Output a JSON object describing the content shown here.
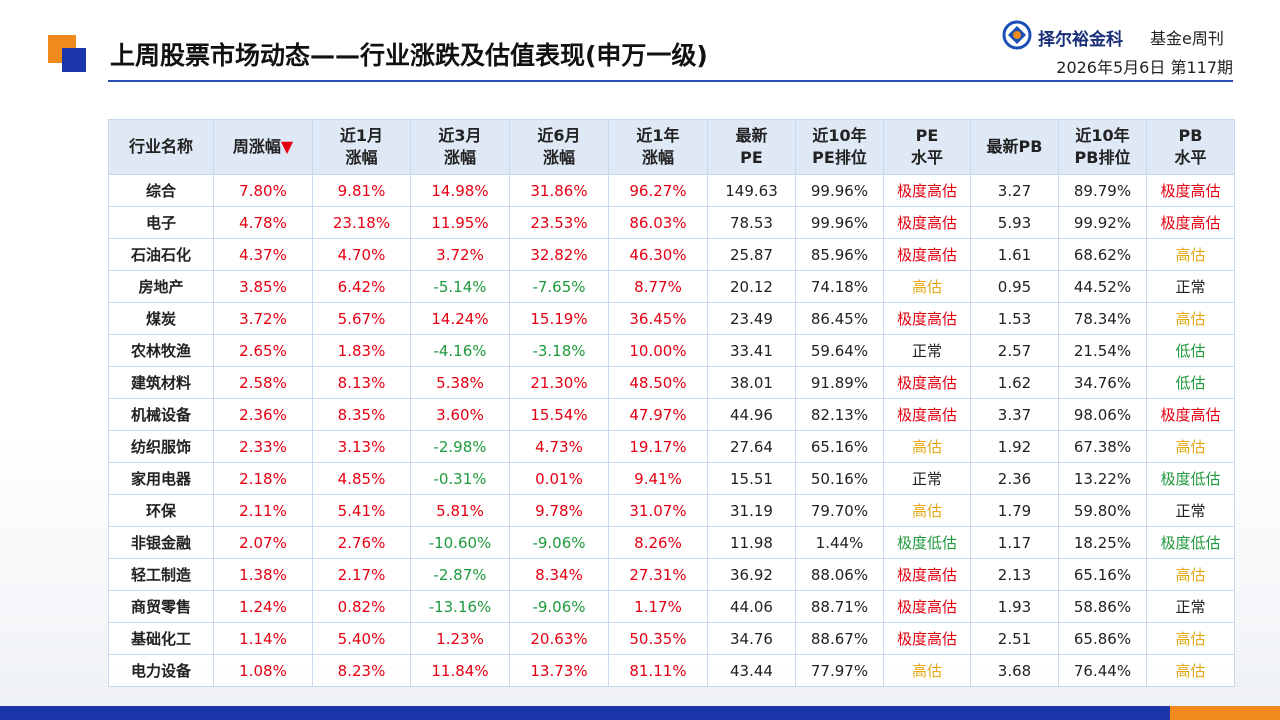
{
  "header": {
    "title": "上周股票市场动态——行业涨跌及估值表现(申万一级)",
    "brand": "择尔裕金科",
    "publication": "基金e周刊",
    "date": "2026年5月6日",
    "issue": "第117期"
  },
  "table": {
    "up_color": "#e60012",
    "down_color": "#1f9a3c",
    "text_color": "#222222",
    "columns": [
      {
        "text": "行业名称"
      },
      {
        "text": "周涨幅",
        "marker": "▼",
        "marker_color": "#e60012"
      },
      {
        "text": "近1月\n涨幅"
      },
      {
        "text": "近3月\n涨幅"
      },
      {
        "text": "近6月\n涨幅"
      },
      {
        "text": "近1年\n涨幅"
      },
      {
        "text": "最新\nPE"
      },
      {
        "text": "近10年\nPE排位"
      },
      {
        "text": "PE\n水平"
      },
      {
        "text": "最新PB"
      },
      {
        "text": "近10年\nPB排位"
      },
      {
        "text": "PB\n水平"
      }
    ],
    "rows": [
      [
        "综合",
        "7.80%",
        "9.81%",
        "14.98%",
        "31.86%",
        "96.27%",
        "149.63",
        "99.96%",
        {
          "text": "极度高估",
          "color": "#e60012"
        },
        "3.27",
        "89.79%",
        {
          "text": "极度高估",
          "color": "#e60012"
        }
      ],
      [
        "电子",
        "4.78%",
        "23.18%",
        "11.95%",
        "23.53%",
        "86.03%",
        "78.53",
        "99.96%",
        {
          "text": "极度高估",
          "color": "#e60012"
        },
        "5.93",
        "99.92%",
        {
          "text": "极度高估",
          "color": "#e60012"
        }
      ],
      [
        "石油石化",
        "4.37%",
        "4.70%",
        "3.72%",
        "32.82%",
        "46.30%",
        "25.87",
        "85.96%",
        {
          "text": "极度高估",
          "color": "#e60012"
        },
        "1.61",
        "68.62%",
        {
          "text": "高估",
          "color": "#e6a817"
        }
      ],
      [
        "房地产",
        "3.85%",
        "6.42%",
        "-5.14%",
        "-7.65%",
        "8.77%",
        "20.12",
        "74.18%",
        {
          "text": "高估",
          "color": "#e6a817"
        },
        "0.95",
        "44.52%",
        {
          "text": "正常",
          "color": "#222222"
        }
      ],
      [
        "煤炭",
        "3.72%",
        "5.67%",
        "14.24%",
        "15.19%",
        "36.45%",
        "23.49",
        "86.45%",
        {
          "text": "极度高估",
          "color": "#e60012"
        },
        "1.53",
        "78.34%",
        {
          "text": "高估",
          "color": "#e6a817"
        }
      ],
      [
        "农林牧渔",
        "2.65%",
        "1.83%",
        "-4.16%",
        "-3.18%",
        "10.00%",
        "33.41",
        "59.64%",
        {
          "text": "正常",
          "color": "#222222"
        },
        "2.57",
        "21.54%",
        {
          "text": "低估",
          "color": "#1f9a3c"
        }
      ],
      [
        "建筑材料",
        "2.58%",
        "8.13%",
        "5.38%",
        "21.30%",
        "48.50%",
        "38.01",
        "91.89%",
        {
          "text": "极度高估",
          "color": "#e60012"
        },
        "1.62",
        "34.76%",
        {
          "text": "低估",
          "color": "#1f9a3c"
        }
      ],
      [
        "机械设备",
        "2.36%",
        "8.35%",
        "3.60%",
        "15.54%",
        "47.97%",
        "44.96",
        "82.13%",
        {
          "text": "极度高估",
          "color": "#e60012"
        },
        "3.37",
        "98.06%",
        {
          "text": "极度高估",
          "color": "#e60012"
        }
      ],
      [
        "纺织服饰",
        "2.33%",
        "3.13%",
        "-2.98%",
        "4.73%",
        "19.17%",
        "27.64",
        "65.16%",
        {
          "text": "高估",
          "color": "#e6a817"
        },
        "1.92",
        "67.38%",
        {
          "text": "高估",
          "color": "#e6a817"
        }
      ],
      [
        "家用电器",
        "2.18%",
        "4.85%",
        "-0.31%",
        "0.01%",
        "9.41%",
        "15.51",
        "50.16%",
        {
          "text": "正常",
          "color": "#222222"
        },
        "2.36",
        "13.22%",
        {
          "text": "极度低估",
          "color": "#1f9a3c"
        }
      ],
      [
        "环保",
        "2.11%",
        "5.41%",
        "5.81%",
        "9.78%",
        "31.07%",
        "31.19",
        "79.70%",
        {
          "text": "高估",
          "color": "#e6a817"
        },
        "1.79",
        "59.80%",
        {
          "text": "正常",
          "color": "#222222"
        }
      ],
      [
        "非银金融",
        "2.07%",
        "2.76%",
        "-10.60%",
        "-9.06%",
        "8.26%",
        "11.98",
        "1.44%",
        {
          "text": "极度低估",
          "color": "#1f9a3c"
        },
        "1.17",
        "18.25%",
        {
          "text": "极度低估",
          "color": "#1f9a3c"
        }
      ],
      [
        "轻工制造",
        "1.38%",
        "2.17%",
        "-2.87%",
        "8.34%",
        "27.31%",
        "36.92",
        "88.06%",
        {
          "text": "极度高估",
          "color": "#e60012"
        },
        "2.13",
        "65.16%",
        {
          "text": "高估",
          "color": "#e6a817"
        }
      ],
      [
        "商贸零售",
        "1.24%",
        "0.82%",
        "-13.16%",
        "-9.06%",
        "1.17%",
        "44.06",
        "88.71%",
        {
          "text": "极度高估",
          "color": "#e60012"
        },
        "1.93",
        "58.86%",
        {
          "text": "正常",
          "color": "#222222"
        }
      ],
      [
        "基础化工",
        "1.14%",
        "5.40%",
        "1.23%",
        "20.63%",
        "50.35%",
        "34.76",
        "88.67%",
        {
          "text": "极度高估",
          "color": "#e60012"
        },
        "2.51",
        "65.86%",
        {
          "text": "高估",
          "color": "#e6a817"
        }
      ],
      [
        "电力设备",
        "1.08%",
        "8.23%",
        "11.84%",
        "13.73%",
        "81.11%",
        "43.44",
        "77.97%",
        {
          "text": "高估",
          "color": "#e6a817"
        },
        "3.68",
        "76.44%",
        {
          "text": "高估",
          "color": "#e6a817"
        }
      ]
    ]
  }
}
